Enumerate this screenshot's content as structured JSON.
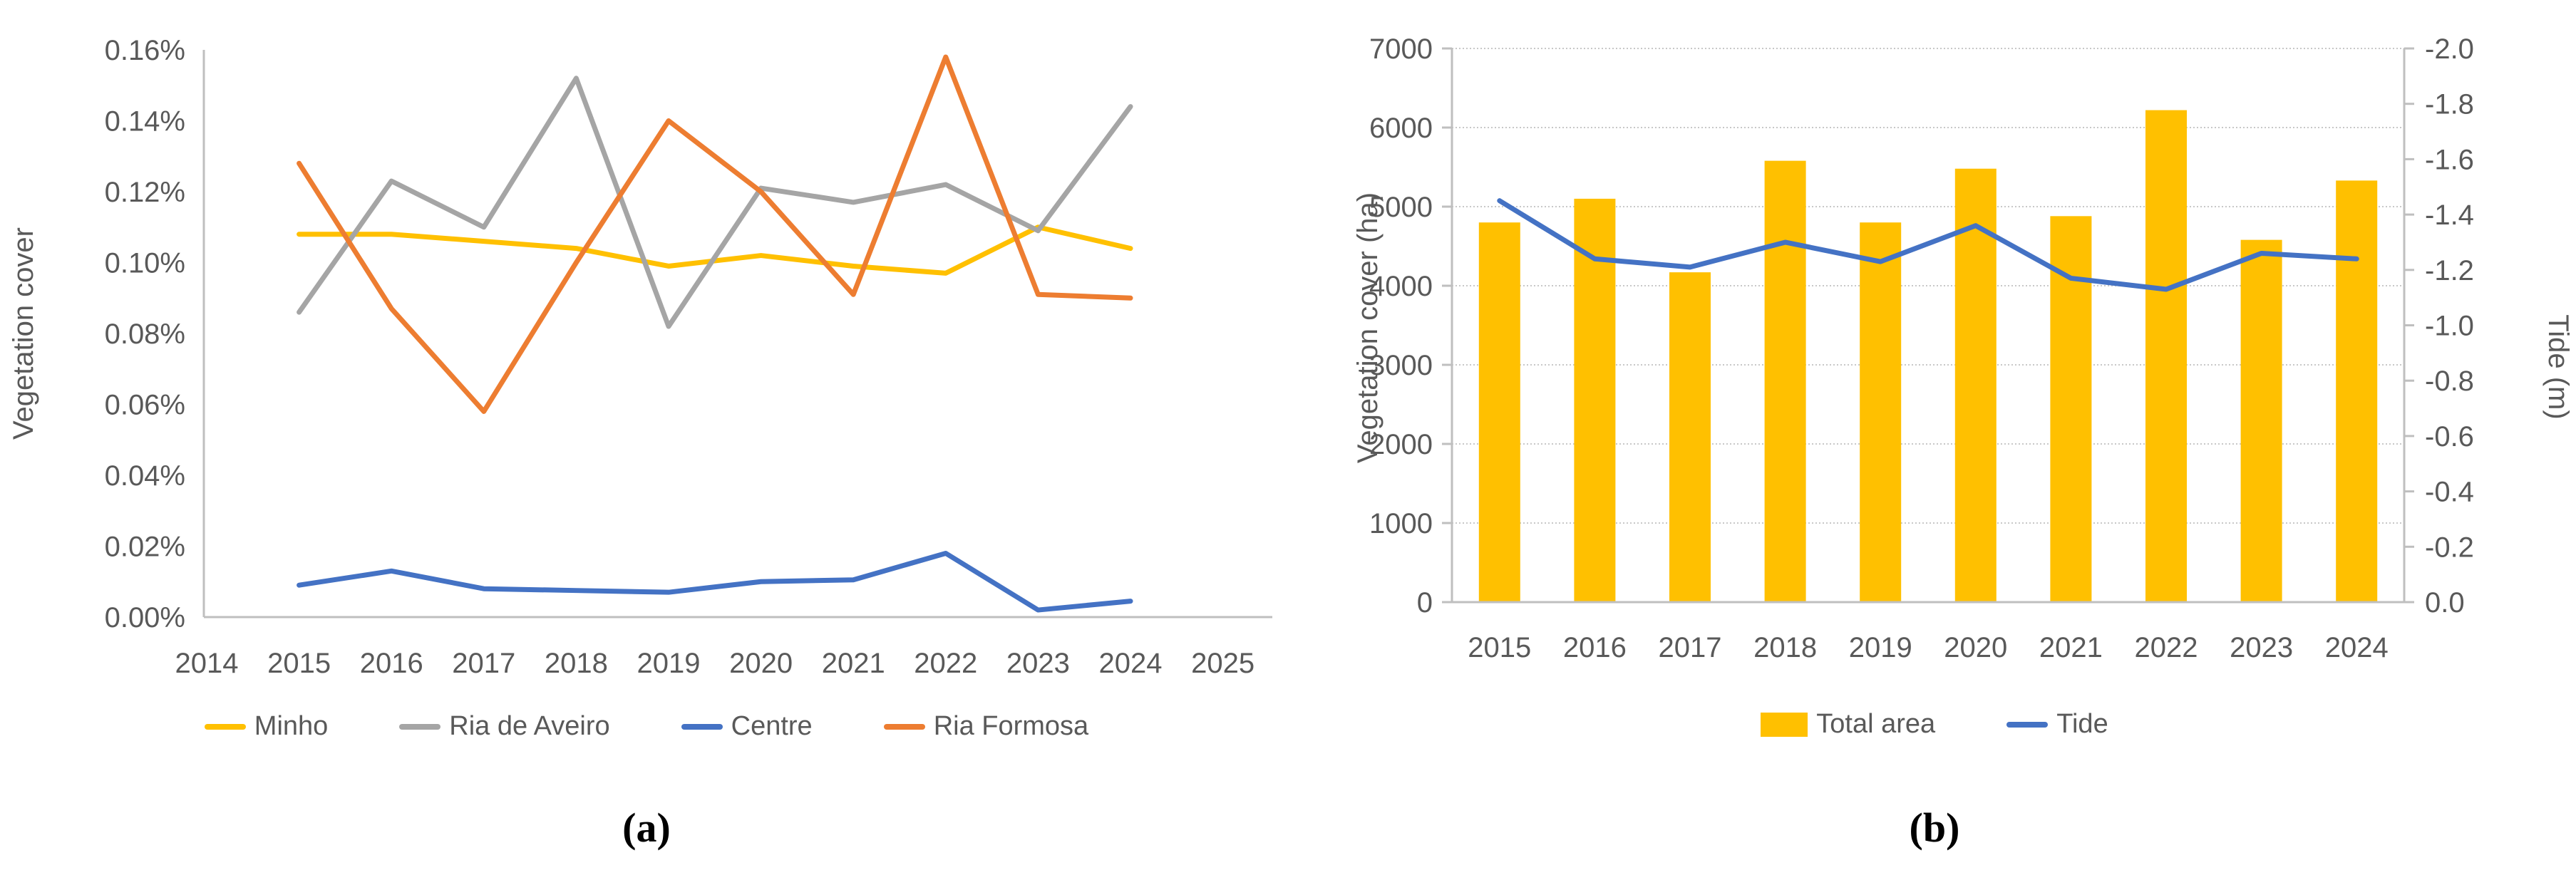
{
  "figure": {
    "background": "#ffffff"
  },
  "colors": {
    "minho": "#FFC000",
    "ria_de_aveiro": "#A5A5A5",
    "centre": "#4472C4",
    "ria_formosa": "#ED7D31",
    "total_area": "#FFC000",
    "tide": "#4472C4",
    "axis_text": "#595959",
    "axis_line": "#BFBFBF",
    "gridline": "#C8C8C8"
  },
  "chart_data": [
    {
      "id": "a",
      "type": "line",
      "caption": "(a)",
      "ylabel": "Vegetation cover",
      "xlabel": "",
      "x": [
        2015,
        2016,
        2017,
        2018,
        2019,
        2020,
        2021,
        2022,
        2023,
        2024
      ],
      "x_axis": {
        "range": [
          2014,
          2025
        ],
        "tick_labels": [
          "2014",
          "2015",
          "2016",
          "2017",
          "2018",
          "2019",
          "2020",
          "2021",
          "2022",
          "2023",
          "2024",
          "2025"
        ]
      },
      "y_axis": {
        "min": 0,
        "max": 0.16,
        "unit": "percent",
        "tick_labels": [
          "0.16%",
          "0.14%",
          "0.12%",
          "0.10%",
          "0.08%",
          "0.06%",
          "0.04%",
          "0.02%",
          "0.00%"
        ]
      },
      "grid": false,
      "legend_position": "bottom",
      "series": [
        {
          "name": "Minho",
          "color": "#FFC000",
          "values": [
            0.108,
            0.108,
            0.106,
            0.104,
            0.099,
            0.102,
            0.099,
            0.097,
            0.11,
            0.104
          ]
        },
        {
          "name": "Ria de Aveiro",
          "color": "#A5A5A5",
          "values": [
            0.086,
            0.123,
            0.11,
            0.152,
            0.082,
            0.121,
            0.117,
            0.122,
            0.109,
            0.144
          ]
        },
        {
          "name": "Centre",
          "color": "#4472C4",
          "values": [
            0.009,
            0.013,
            0.008,
            0.0075,
            0.007,
            0.01,
            0.0105,
            0.018,
            0.002,
            0.0045
          ]
        },
        {
          "name": "Ria Formosa",
          "color": "#ED7D31",
          "values": [
            0.128,
            0.087,
            0.058,
            0.1,
            0.14,
            0.12,
            0.091,
            0.158,
            0.091,
            0.09
          ]
        }
      ]
    },
    {
      "id": "b",
      "type": "bar+line",
      "caption": "(b)",
      "x": [
        2015,
        2016,
        2017,
        2018,
        2019,
        2020,
        2021,
        2022,
        2023,
        2024
      ],
      "x_axis": {
        "tick_labels": [
          "2015",
          "2016",
          "2017",
          "2018",
          "2019",
          "2020",
          "2021",
          "2022",
          "2023",
          "2024"
        ]
      },
      "left_axis": {
        "label": "Vegetation cover (ha)",
        "min": 0,
        "max": 7000,
        "step": 1000,
        "tick_labels": [
          "7000",
          "6000",
          "5000",
          "4000",
          "3000",
          "2000",
          "1000",
          "0"
        ]
      },
      "right_axis": {
        "label": "Tide (m)",
        "top": -2.0,
        "bottom": 0.0,
        "step": 0.2,
        "reversed": true,
        "tick_labels": [
          "-2.0",
          "-1.8",
          "-1.6",
          "-1.4",
          "-1.2",
          "-1.0",
          "-0.8",
          "-0.6",
          "-0.4",
          "-0.2",
          "0.0"
        ]
      },
      "grid": true,
      "legend_position": "bottom",
      "series": [
        {
          "name": "Total area",
          "type": "bar",
          "axis": "left",
          "color": "#FFC000",
          "values": [
            4800,
            5100,
            4170,
            5580,
            4800,
            5480,
            4880,
            6220,
            4580,
            5330
          ]
        },
        {
          "name": "Tide",
          "type": "line",
          "axis": "right",
          "color": "#4472C4",
          "values": [
            -1.45,
            -1.24,
            -1.21,
            -1.3,
            -1.23,
            -1.36,
            -1.17,
            -1.13,
            -1.26,
            -1.24
          ]
        }
      ]
    }
  ]
}
